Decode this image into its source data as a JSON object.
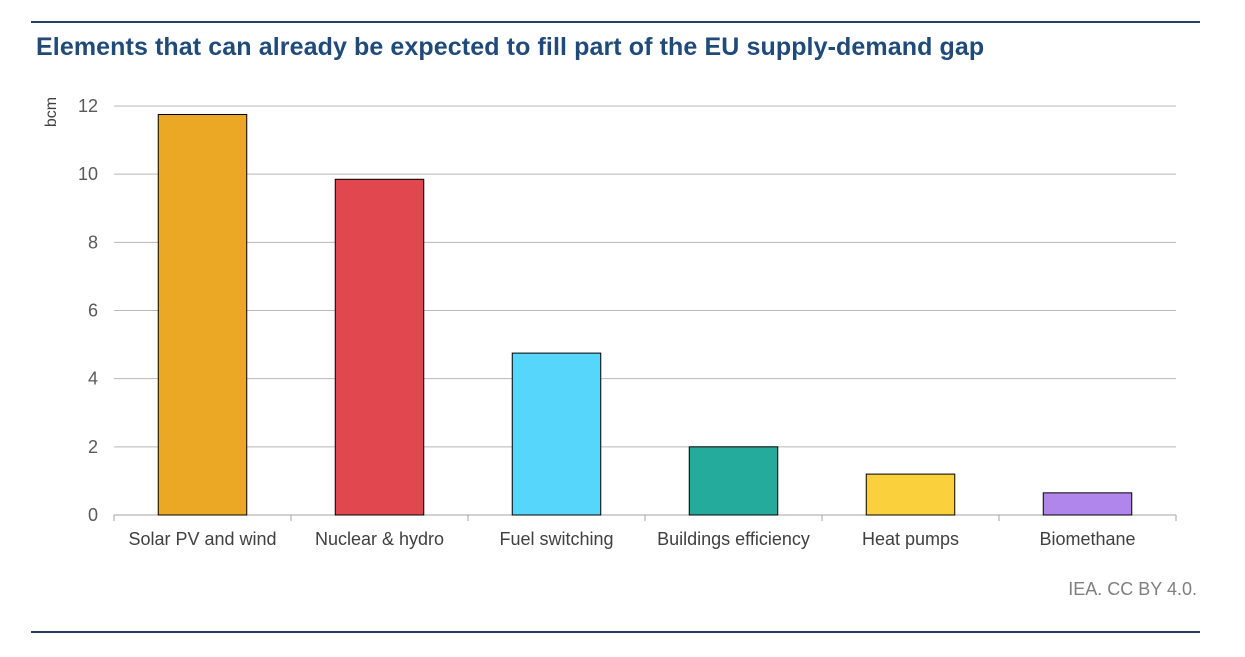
{
  "title": "Elements that can already be expected to fill part of the EU supply-demand gap",
  "source": "IEA. CC BY 4.0.",
  "chart_data": {
    "type": "bar",
    "title": "Elements that can already be expected to fill part of the EU supply-demand gap",
    "xlabel": "",
    "ylabel": "bcm",
    "ylim": [
      0,
      12
    ],
    "yticks": [
      0,
      2,
      4,
      6,
      8,
      10,
      12
    ],
    "grid": true,
    "categories": [
      "Solar PV and wind",
      "Nuclear & hydro",
      "Fuel switching",
      "Buildings efficiency",
      "Heat pumps",
      "Biomethane"
    ],
    "values": [
      11.75,
      9.85,
      4.75,
      2.0,
      1.2,
      0.65
    ],
    "colors": [
      "#eba824",
      "#e0474f",
      "#57d6fc",
      "#24ab9b",
      "#fad03c",
      "#b186ec"
    ]
  }
}
